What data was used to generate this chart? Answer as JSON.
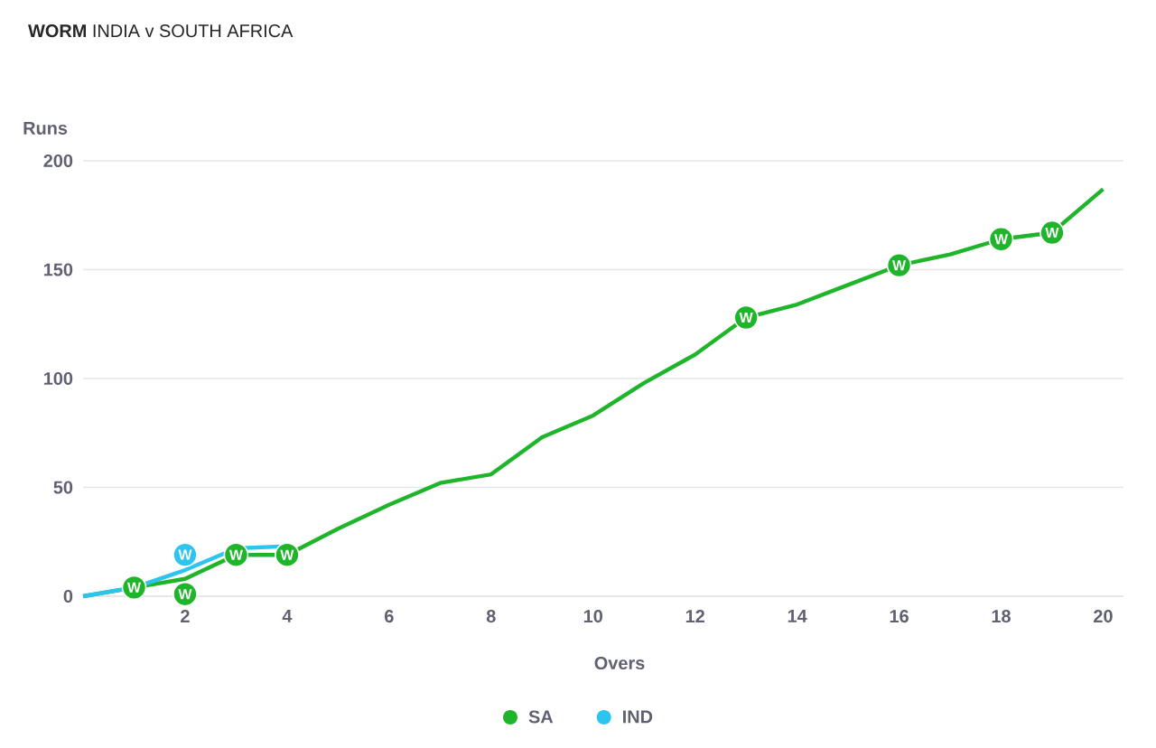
{
  "chart_data": {
    "type": "line",
    "title": "**WORM** INDIA v SOUTH AFRICA",
    "xlabel": "Overs",
    "ylabel": "Runs",
    "series": [
      {
        "name": "SA",
        "color": "#1fb52a",
        "x": [
          0,
          1,
          2,
          3,
          4,
          5,
          6,
          7,
          8,
          9,
          10,
          11,
          12,
          13,
          14,
          15,
          16,
          17,
          18,
          19,
          20
        ],
        "values": [
          0,
          4,
          8,
          19,
          19,
          31,
          42,
          52,
          56,
          73,
          83,
          98,
          111,
          128,
          134,
          143,
          152,
          157,
          164,
          167,
          187
        ]
      },
      {
        "name": "IND",
        "color": "#2ec4f0",
        "x": [
          0,
          1,
          2,
          3,
          4
        ],
        "values": [
          0,
          4,
          12,
          22,
          23
        ]
      }
    ],
    "annotations": [
      {
        "text": "W",
        "x": 2,
        "y": 8
      },
      {
        "text": "W",
        "x": 3,
        "y": 19
      },
      {
        "text": "W",
        "x": 4,
        "y": 19
      },
      {
        "text": "W",
        "x": 13,
        "y": 128
      },
      {
        "text": "W",
        "x": 16,
        "y": 152
      },
      {
        "text": "W",
        "x": 18,
        "y": 164
      },
      {
        "text": "W",
        "x": 19,
        "y": 167
      },
      {
        "text": "W",
        "x": 1,
        "y": 4
      },
      {
        "text": "W",
        "x": 2,
        "y": 12
      }
    ],
    "xlim": [
      0,
      20.4
    ],
    "ylim": [
      0,
      200
    ],
    "xticks": [
      2,
      4,
      6,
      8,
      10,
      12,
      14,
      16,
      18,
      20
    ],
    "yticks": [
      0,
      50,
      100,
      150,
      200
    ],
    "grid": "y",
    "legend": "bottom",
    "marker": "none",
    "line_style": "solid"
  }
}
